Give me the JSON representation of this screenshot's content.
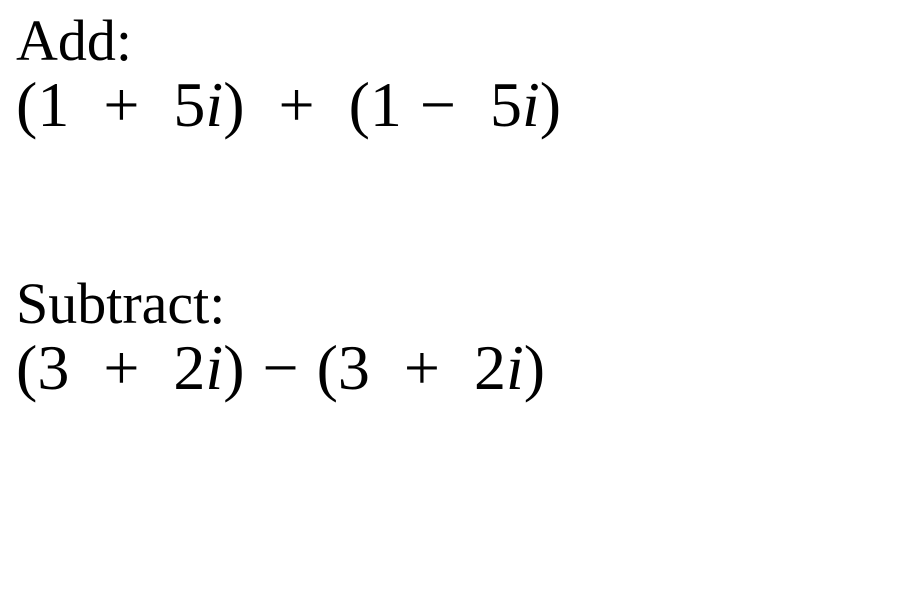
{
  "background_color": "#ffffff",
  "text_color": "#000000",
  "font_family": "Times New Roman",
  "label_fontsize": 58,
  "expr_fontsize": 64,
  "sections": {
    "add": {
      "label": "Add:",
      "expr": {
        "left": {
          "lp": "(",
          "a": "1",
          "op": "+",
          "b": "5",
          "i": "i",
          "rp": ")"
        },
        "mid_op": "+",
        "right": {
          "lp": "(",
          "a": "1",
          "op": "−",
          "b": "5",
          "i": "i",
          "rp": ")"
        }
      }
    },
    "subtract": {
      "label": "Subtract:",
      "expr": {
        "left": {
          "lp": "(",
          "a": "3",
          "op": "+",
          "b": "2",
          "i": "i",
          "rp": ")"
        },
        "mid_op": "−",
        "right": {
          "lp": "(",
          "a": "3",
          "op": "+",
          "b": "2",
          "i": "i",
          "rp": ")"
        }
      }
    }
  }
}
